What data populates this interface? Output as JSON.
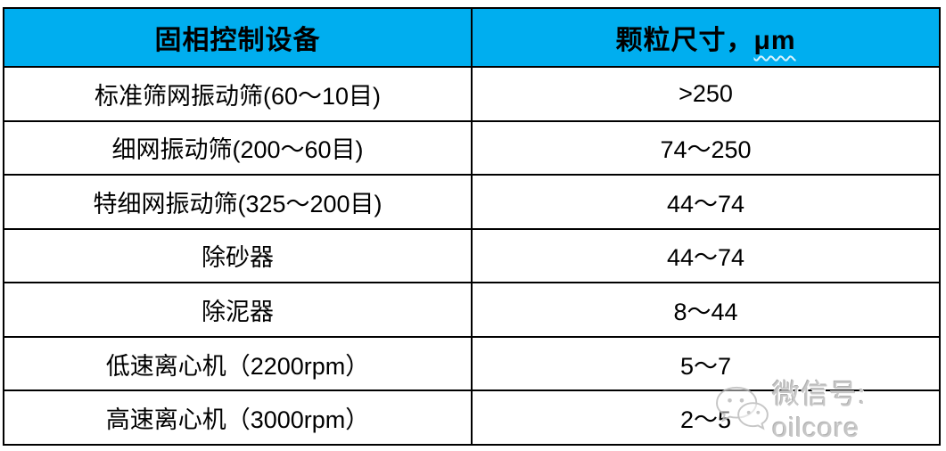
{
  "table": {
    "header": {
      "device_label": "固相控制设备",
      "size_label_prefix": "颗粒尺寸，",
      "size_label_unit": "μm"
    },
    "rows": [
      {
        "device": "标准筛网振动筛(60～10目)",
        "size": ">250"
      },
      {
        "device": "细网振动筛(200～60目)",
        "size": "74～250"
      },
      {
        "device": "特细网振动筛(325～200目)",
        "size": "44～74"
      },
      {
        "device": "除砂器",
        "size": "44～74"
      },
      {
        "device": "除泥器",
        "size": "8～44"
      },
      {
        "device": "低速离心机（2200rpm）",
        "size": "5～7"
      },
      {
        "device": "高速离心机（3000rpm）",
        "size": "2～5"
      }
    ]
  },
  "watermark": {
    "icon": "wechat-icon",
    "label": "微信号: oilcore"
  },
  "colors": {
    "header_bg": "#00AEEF",
    "border": "#000000",
    "row_bg": "#FFFFFF",
    "text": "#000000",
    "watermark_text": "#C7C7C7"
  }
}
